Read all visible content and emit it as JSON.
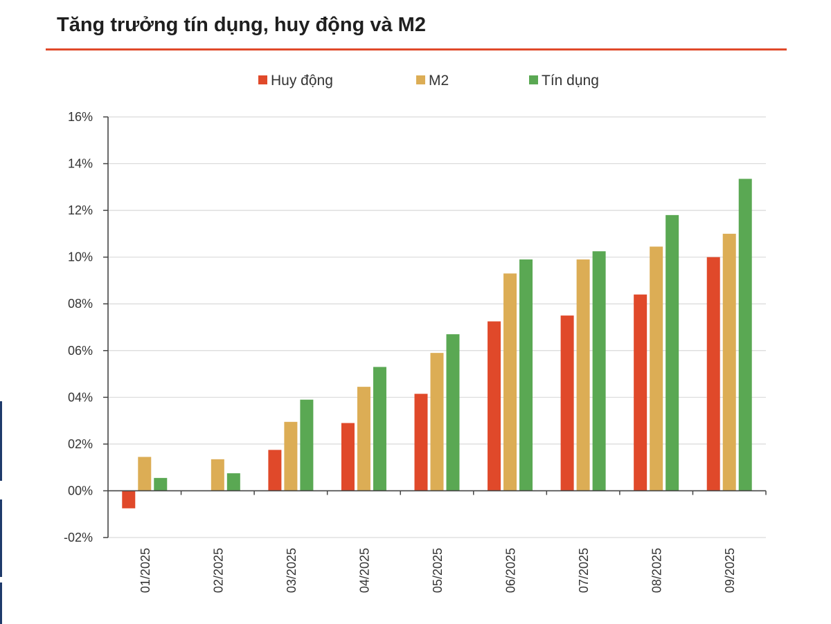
{
  "chart_data": {
    "type": "bar",
    "title": "Tăng trưởng tín dụng, huy động và M2",
    "categories": [
      "01/2025",
      "02/2025",
      "03/2025",
      "04/2025",
      "05/2025",
      "06/2025",
      "07/2025",
      "08/2025",
      "09/2025"
    ],
    "series": [
      {
        "name": "Huy động",
        "color": "#e0492a",
        "values": [
          -0.75,
          0,
          1.75,
          2.9,
          4.15,
          7.25,
          7.5,
          8.4,
          10.0
        ]
      },
      {
        "name": "M2",
        "color": "#dcad55",
        "values": [
          1.45,
          1.35,
          2.95,
          4.45,
          5.9,
          9.3,
          9.9,
          10.45,
          11.0
        ]
      },
      {
        "name": "Tín dụng",
        "color": "#5aa853",
        "values": [
          0.55,
          0.75,
          3.9,
          5.3,
          6.7,
          9.9,
          10.25,
          11.8,
          13.35
        ]
      }
    ],
    "ylim": [
      -2,
      16
    ],
    "yticks": [
      -2,
      0,
      2,
      4,
      6,
      8,
      10,
      12,
      14,
      16
    ],
    "ytick_labels": [
      "-02%",
      "00%",
      "02%",
      "04%",
      "06%",
      "08%",
      "10%",
      "12%",
      "14%",
      "16%"
    ],
    "xlabel": "",
    "ylabel": "",
    "grid": true,
    "legend": "top-center",
    "accent_color": "#e0492a"
  }
}
